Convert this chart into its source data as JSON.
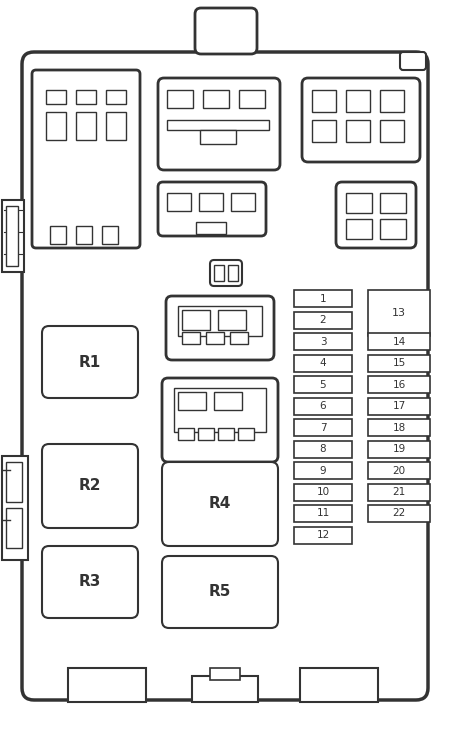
{
  "bg_color": "#ffffff",
  "line_color": "#333333",
  "relay_labels": [
    "R1",
    "R2",
    "R3",
    "R4",
    "R5"
  ],
  "fuse_left": [
    "1",
    "2",
    "3",
    "4",
    "5",
    "6",
    "7",
    "8",
    "9",
    "10",
    "11",
    "12"
  ],
  "fuse_right": [
    "14",
    "15",
    "16",
    "17",
    "18",
    "19",
    "20",
    "21",
    "22"
  ]
}
